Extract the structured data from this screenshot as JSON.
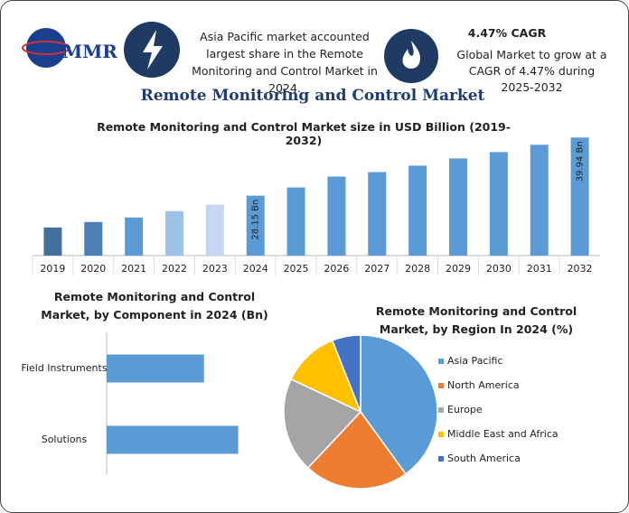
{
  "header": {
    "logo": "MMR",
    "highlight": "Asia Pacific market accounted largest share in the Remote Monitoring and Control Market in 2024.",
    "cagr_title": "4.47% CAGR",
    "cagr_text": "Global Market to grow at a CAGR of 4.47% during 2025-2032",
    "title": "Remote Monitoring and Control Market"
  },
  "chart_data": [
    {
      "type": "bar",
      "title": "Remote Monitoring and Control Market size in USD Billion (2019-2032)",
      "categories": [
        "2019",
        "2020",
        "2021",
        "2022",
        "2023",
        "2024",
        "2025",
        "2026",
        "2027",
        "2028",
        "2029",
        "2030",
        "2031",
        "2032"
      ],
      "values": [
        21.7,
        22.81,
        23.73,
        25.02,
        26.31,
        28.15,
        29.81,
        32.02,
        32.94,
        34.23,
        35.7,
        36.99,
        38.47,
        39.94
      ],
      "value_labels": [
        null,
        null,
        null,
        null,
        null,
        "28.15 Bn",
        null,
        null,
        null,
        null,
        null,
        null,
        null,
        "39.94 Bn"
      ],
      "colors": [
        "#41719c",
        "#4a80b5",
        "#5b9bd5",
        "#9dc3e6",
        "#c5d8ef",
        "#5b9bd5",
        "#5b9bd5",
        "#5b9bd5",
        "#5b9bd5",
        "#5b9bd5",
        "#5b9bd5",
        "#5b9bd5",
        "#5b9bd5",
        "#5b9bd5"
      ],
      "ylim": [
        16,
        42
      ]
    },
    {
      "type": "hbar",
      "title": "Remote Monitoring and Control Market, by Component in 2024 (Bn)",
      "categories": [
        "Field Instruments",
        "Solutions"
      ],
      "values": [
        11.97,
        16.18
      ],
      "color": "#5b9bd5",
      "xlim": [
        0,
        20
      ]
    },
    {
      "type": "pie",
      "title": "Remote Monitoring and Control Market, by Region In 2024 (%)",
      "categories": [
        "Asia Pacific",
        "North America",
        "Europe",
        "Middle East and Africa",
        "South America"
      ],
      "values": [
        40,
        22,
        20,
        12,
        6
      ],
      "colors": [
        "#5b9bd5",
        "#ed7d31",
        "#a5a5a5",
        "#ffc000",
        "#4472c4"
      ],
      "legend": "right"
    }
  ]
}
